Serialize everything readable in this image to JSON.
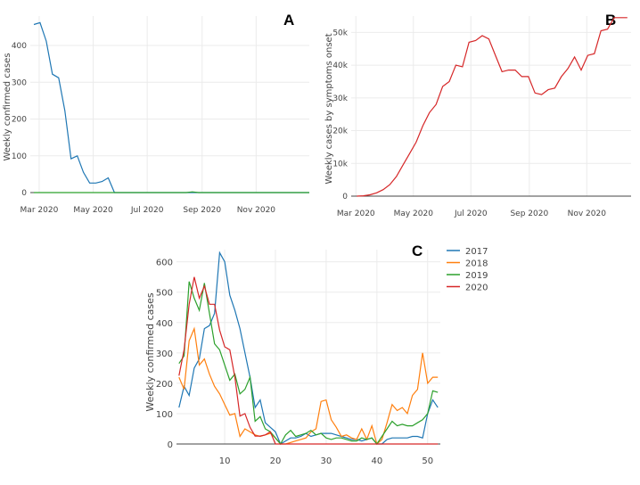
{
  "chart_data": [
    {
      "panel": "A",
      "type": "line",
      "ylabel": "Weekly confirmed cases",
      "x_tick_labels": [
        "Mar 2020",
        "May 2020",
        "Jul 2020",
        "Sep 2020",
        "Nov 2020"
      ],
      "y_ticks": [
        0,
        100,
        200,
        300,
        400
      ],
      "ylim": [
        0,
        480
      ],
      "grid": true,
      "series": [
        {
          "color": "#1f77b4",
          "x": [
            "2020-02-24",
            "2020-03-02",
            "2020-03-09",
            "2020-03-16",
            "2020-03-23",
            "2020-03-30",
            "2020-04-06",
            "2020-04-13",
            "2020-04-20",
            "2020-04-27",
            "2020-05-04",
            "2020-05-11",
            "2020-05-18",
            "2020-05-25",
            "2020-06-01",
            "2020-12-31"
          ],
          "y": [
            457,
            462,
            412,
            322,
            312,
            222,
            92,
            100,
            55,
            26,
            26,
            30,
            40,
            0,
            0,
            0
          ]
        },
        {
          "color": "#2ca02c",
          "x": [
            "2020-02-24",
            "2020-08-14",
            "2020-08-21",
            "2020-08-28",
            "2020-12-31"
          ],
          "y": [
            0,
            0,
            2,
            0,
            0
          ]
        }
      ]
    },
    {
      "panel": "B",
      "type": "line",
      "ylabel": "Weekly cases by symptoms onset",
      "x_tick_labels": [
        "Mar 2020",
        "May 2020",
        "Jul 2020",
        "Sep 2020",
        "Nov 2020"
      ],
      "y_ticks": [
        0,
        10000,
        20000,
        30000,
        40000,
        50000
      ],
      "y_tick_labels": [
        "0",
        "10k",
        "20k",
        "30k",
        "40k",
        "50k"
      ],
      "ylim": [
        0,
        55000
      ],
      "grid": true,
      "series": [
        {
          "color": "#d62728",
          "x": [
            "2020-03-02",
            "2020-03-09",
            "2020-03-16",
            "2020-03-23",
            "2020-03-30",
            "2020-04-06",
            "2020-04-13",
            "2020-04-20",
            "2020-04-27",
            "2020-05-04",
            "2020-05-11",
            "2020-05-18",
            "2020-05-25",
            "2020-06-01",
            "2020-06-08",
            "2020-06-15",
            "2020-06-22",
            "2020-06-29",
            "2020-07-06",
            "2020-07-13",
            "2020-07-20",
            "2020-07-27",
            "2020-08-03",
            "2020-08-10",
            "2020-08-17",
            "2020-08-24",
            "2020-08-31",
            "2020-09-07",
            "2020-09-14",
            "2020-09-21",
            "2020-09-28",
            "2020-10-05",
            "2020-10-12",
            "2020-10-19",
            "2020-10-26",
            "2020-11-02",
            "2020-11-09",
            "2020-11-16",
            "2020-11-23",
            "2020-11-30",
            "2020-12-07",
            "2020-12-14"
          ],
          "y": [
            0,
            100,
            400,
            1000,
            2000,
            3500,
            6000,
            9500,
            13000,
            16500,
            21500,
            25500,
            28000,
            33500,
            35000,
            40000,
            39500,
            47000,
            47500,
            49000,
            48000,
            43000,
            38000,
            38500,
            38500,
            36500,
            36500,
            31500,
            31000,
            32500,
            33000,
            36500,
            39000,
            42500,
            38500,
            43000,
            43500,
            50500,
            51000,
            54500,
            54500,
            54500
          ]
        }
      ]
    },
    {
      "panel": "C",
      "type": "line",
      "ylabel": "Weekly confirmed cases",
      "x_ticks": [
        10,
        20,
        30,
        40,
        50
      ],
      "y_ticks": [
        0,
        100,
        200,
        300,
        400,
        500,
        600
      ],
      "xlim": [
        0.5,
        52.5
      ],
      "ylim": [
        0,
        640
      ],
      "grid": true,
      "legend_position": "top-right",
      "series": [
        {
          "name": "2017",
          "color": "#1f77b4",
          "x": [
            1,
            2,
            3,
            4,
            5,
            6,
            7,
            8,
            9,
            10,
            11,
            12,
            13,
            14,
            15,
            16,
            17,
            18,
            19,
            20,
            21,
            22,
            23,
            24,
            25,
            26,
            27,
            28,
            29,
            30,
            31,
            32,
            33,
            34,
            35,
            36,
            37,
            38,
            39,
            40,
            41,
            42,
            43,
            44,
            45,
            46,
            47,
            48,
            49,
            50,
            51,
            52
          ],
          "y": [
            120,
            190,
            160,
            250,
            280,
            380,
            390,
            430,
            630,
            600,
            490,
            440,
            380,
            300,
            220,
            120,
            145,
            70,
            55,
            40,
            0,
            10,
            20,
            20,
            25,
            35,
            25,
            30,
            35,
            35,
            35,
            30,
            25,
            20,
            15,
            15,
            10,
            15,
            20,
            0,
            0,
            15,
            20,
            20,
            20,
            20,
            25,
            25,
            20,
            100,
            145,
            120
          ]
        },
        {
          "name": "2018",
          "color": "#ff7f0e",
          "x": [
            1,
            2,
            3,
            4,
            5,
            6,
            7,
            8,
            9,
            10,
            11,
            12,
            13,
            14,
            15,
            16,
            17,
            18,
            19,
            20,
            21,
            22,
            23,
            24,
            25,
            26,
            27,
            28,
            29,
            30,
            31,
            32,
            33,
            34,
            35,
            36,
            37,
            38,
            39,
            40,
            41,
            42,
            43,
            44,
            45,
            46,
            47,
            48,
            49,
            50,
            51,
            52
          ],
          "y": [
            220,
            180,
            340,
            380,
            260,
            280,
            230,
            190,
            165,
            130,
            95,
            100,
            25,
            50,
            40,
            30,
            25,
            30,
            35,
            20,
            0,
            0,
            5,
            10,
            15,
            20,
            40,
            50,
            140,
            145,
            80,
            55,
            25,
            30,
            20,
            15,
            50,
            15,
            60,
            0,
            15,
            70,
            130,
            110,
            120,
            100,
            160,
            180,
            300,
            200,
            220,
            220
          ]
        },
        {
          "name": "2019",
          "color": "#2ca02c",
          "x": [
            1,
            2,
            3,
            4,
            5,
            6,
            7,
            8,
            9,
            10,
            11,
            12,
            13,
            14,
            15,
            16,
            17,
            18,
            19,
            20,
            21,
            22,
            23,
            24,
            25,
            26,
            27,
            28,
            29,
            30,
            31,
            32,
            33,
            34,
            35,
            36,
            37,
            38,
            39,
            40,
            41,
            42,
            43,
            44,
            45,
            46,
            47,
            48,
            49,
            50,
            51,
            52
          ],
          "y": [
            265,
            290,
            535,
            480,
            440,
            530,
            430,
            330,
            310,
            260,
            210,
            230,
            165,
            180,
            220,
            75,
            90,
            50,
            40,
            20,
            0,
            30,
            45,
            25,
            30,
            35,
            45,
            30,
            35,
            20,
            15,
            20,
            20,
            15,
            10,
            10,
            20,
            15,
            20,
            0,
            25,
            50,
            75,
            60,
            65,
            60,
            60,
            70,
            80,
            100,
            175,
            170
          ]
        },
        {
          "name": "2020",
          "color": "#d62728",
          "x": [
            1,
            2,
            3,
            4,
            5,
            6,
            7,
            8,
            9,
            10,
            11,
            12,
            13,
            14,
            15,
            16,
            17,
            18,
            19,
            20,
            21,
            22,
            23,
            24,
            25,
            26,
            27,
            28,
            29,
            30,
            31,
            32,
            33,
            34,
            35,
            36,
            37,
            38,
            39,
            40,
            41,
            42,
            43,
            44,
            45,
            46,
            47,
            48,
            49,
            50,
            51,
            52
          ],
          "y": [
            225,
            310,
            460,
            550,
            480,
            520,
            460,
            460,
            375,
            320,
            310,
            220,
            92,
            100,
            55,
            26,
            26,
            30,
            40,
            0,
            0,
            0,
            0,
            0,
            0,
            0,
            0,
            0,
            0,
            0,
            0,
            0,
            0,
            0,
            0,
            0,
            0,
            0,
            0,
            0,
            0,
            0,
            0,
            0,
            0,
            0,
            0,
            0,
            0,
            0,
            0,
            0
          ]
        }
      ]
    }
  ]
}
